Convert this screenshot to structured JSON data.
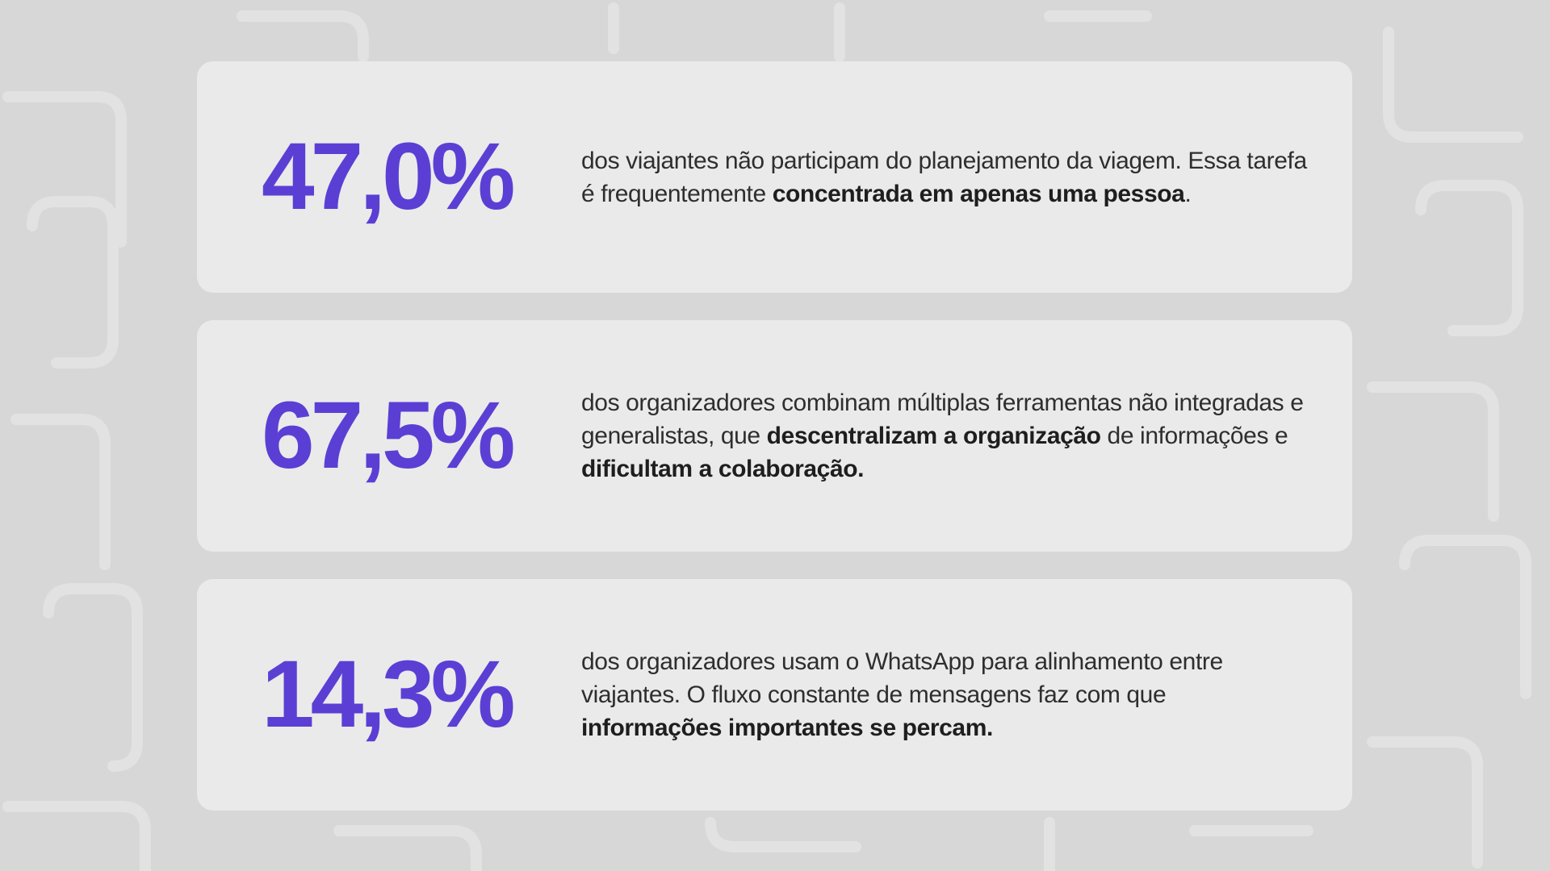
{
  "stats": [
    {
      "value": "47,0%",
      "parts": [
        {
          "text": "dos viajantes não participam do planejamento da viagem. Essa tarefa é frequentemente ",
          "bold": false
        },
        {
          "text": "concentrada em apenas uma pessoa",
          "bold": true
        },
        {
          "text": ".",
          "bold": false
        }
      ]
    },
    {
      "value": "67,5%",
      "parts": [
        {
          "text": "dos organizadores combinam múltiplas ferramentas não integradas e generalistas, que ",
          "bold": false
        },
        {
          "text": "descentralizam a organização",
          "bold": true
        },
        {
          "text": " de informações e ",
          "bold": false
        },
        {
          "text": "dificultam a colaboração.",
          "bold": true
        }
      ]
    },
    {
      "value": "14,3%",
      "parts": [
        {
          "text": "dos organizadores usam o WhatsApp para alinhamento entre viajantes. O fluxo constante de mensagens faz com que ",
          "bold": false
        },
        {
          "text": "informações importantes se percam.",
          "bold": true
        }
      ]
    }
  ],
  "colors": {
    "accent": "#5b3fd4",
    "background": "#d7d7d7",
    "card": "#ececec",
    "text": "#2e2e2e"
  }
}
